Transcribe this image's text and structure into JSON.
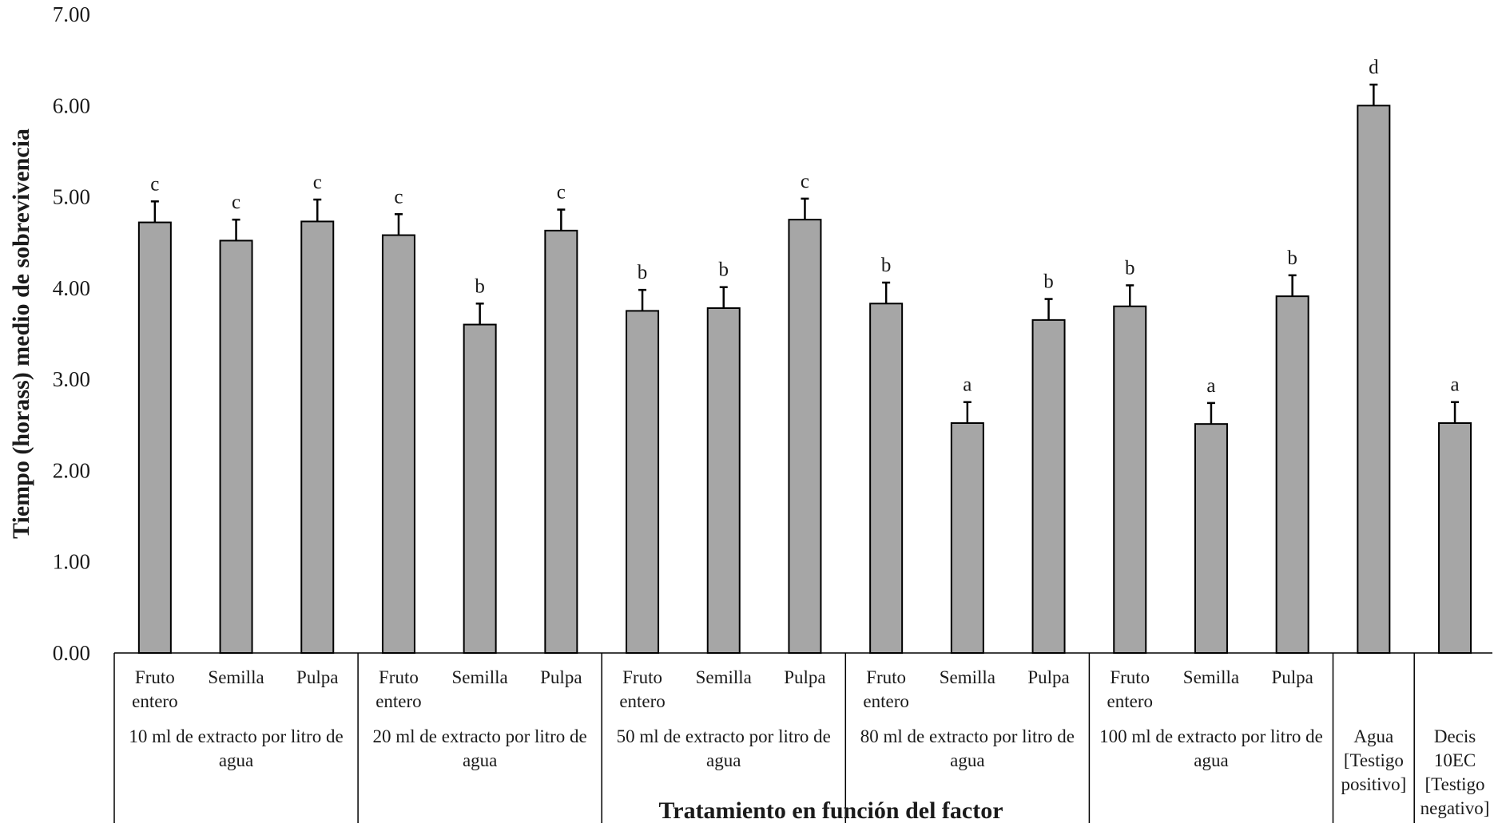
{
  "chart_data": {
    "type": "bar",
    "ylabel": "Tiempo (horass) medio de sobrevivencia",
    "xlabel": "Tratamiento en función del factor",
    "ylim": [
      0,
      7
    ],
    "yticks": [
      "0.00",
      "1.00",
      "2.00",
      "3.00",
      "4.00",
      "5.00",
      "6.00",
      "7.00"
    ],
    "grid": false,
    "bar_color": "#a6a6a6",
    "groups": [
      {
        "label_lines": [
          "10 ml de extracto por litro de",
          "agua"
        ],
        "bars": [
          {
            "label_lines": [
              "Fruto",
              "entero"
            ],
            "value": 4.72,
            "error": 0.23,
            "letter": "c"
          },
          {
            "label_lines": [
              "Semilla"
            ],
            "value": 4.52,
            "error": 0.23,
            "letter": "c"
          },
          {
            "label_lines": [
              "Pulpa"
            ],
            "value": 4.73,
            "error": 0.24,
            "letter": "c"
          }
        ]
      },
      {
        "label_lines": [
          "20 ml de extracto por litro de",
          "agua"
        ],
        "bars": [
          {
            "label_lines": [
              "Fruto",
              "entero"
            ],
            "value": 4.58,
            "error": 0.23,
            "letter": "c"
          },
          {
            "label_lines": [
              "Semilla"
            ],
            "value": 3.6,
            "error": 0.23,
            "letter": "b"
          },
          {
            "label_lines": [
              "Pulpa"
            ],
            "value": 4.63,
            "error": 0.23,
            "letter": "c"
          }
        ]
      },
      {
        "label_lines": [
          "50 ml de extracto por litro de",
          "agua"
        ],
        "bars": [
          {
            "label_lines": [
              "Fruto",
              "entero"
            ],
            "value": 3.75,
            "error": 0.23,
            "letter": "b"
          },
          {
            "label_lines": [
              "Semilla"
            ],
            "value": 3.78,
            "error": 0.23,
            "letter": "b"
          },
          {
            "label_lines": [
              "Pulpa"
            ],
            "value": 4.75,
            "error": 0.23,
            "letter": "c"
          }
        ]
      },
      {
        "label_lines": [
          "80 ml de extracto por litro de",
          "agua"
        ],
        "bars": [
          {
            "label_lines": [
              "Fruto",
              "entero"
            ],
            "value": 3.83,
            "error": 0.23,
            "letter": "b"
          },
          {
            "label_lines": [
              "Semilla"
            ],
            "value": 2.52,
            "error": 0.23,
            "letter": "a"
          },
          {
            "label_lines": [
              "Pulpa"
            ],
            "value": 3.65,
            "error": 0.23,
            "letter": "b"
          }
        ]
      },
      {
        "label_lines": [
          "100 ml de extracto por litro de",
          "agua"
        ],
        "bars": [
          {
            "label_lines": [
              "Fruto",
              "entero"
            ],
            "value": 3.8,
            "error": 0.23,
            "letter": "b"
          },
          {
            "label_lines": [
              "Semilla"
            ],
            "value": 2.51,
            "error": 0.23,
            "letter": "a"
          },
          {
            "label_lines": [
              "Pulpa"
            ],
            "value": 3.91,
            "error": 0.23,
            "letter": "b"
          }
        ]
      },
      {
        "label_lines": [
          "Agua",
          "[Testigo",
          "positivo]"
        ],
        "bars": [
          {
            "label_lines": [],
            "value": 6.0,
            "error": 0.23,
            "letter": "d"
          }
        ]
      },
      {
        "label_lines": [
          "Decis",
          "10EC",
          "[Testigo",
          "negativo]"
        ],
        "bars": [
          {
            "label_lines": [],
            "value": 2.52,
            "error": 0.23,
            "letter": "a"
          }
        ]
      }
    ]
  }
}
